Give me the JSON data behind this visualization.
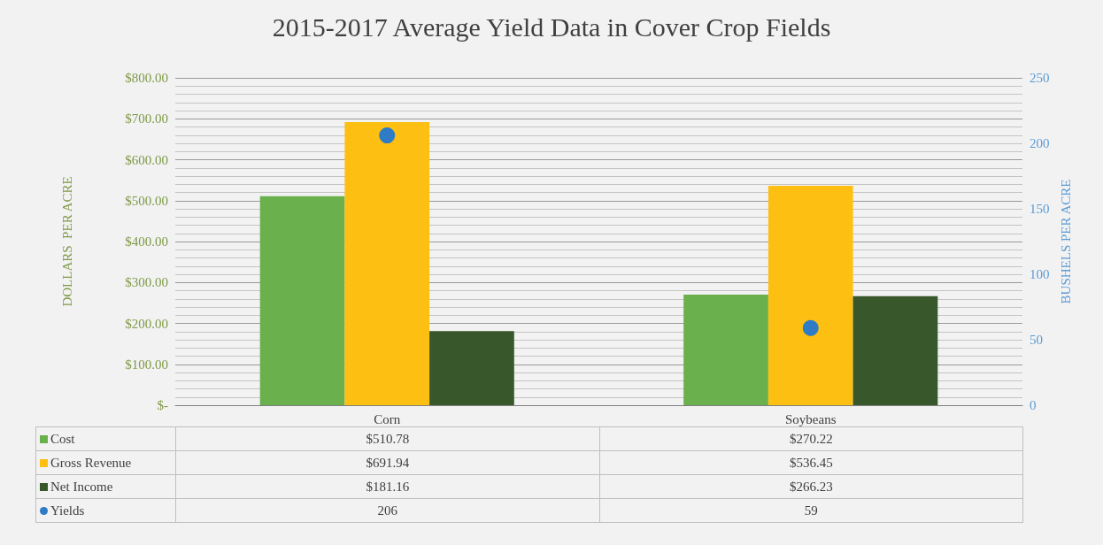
{
  "chart_data": {
    "type": "bar",
    "title": "2015-2017 Average Yield Data in Cover Crop Fields",
    "ylabel": "DOLLARS  PER ACRE",
    "y2label": "BUSHELS PER ACRE",
    "categories": [
      "Corn",
      "Soybeans"
    ],
    "series": [
      {
        "name": "Cost",
        "color": "#6ab04c",
        "values": [
          510.78,
          270.22
        ],
        "value_labels": [
          "$510.78",
          "$270.22"
        ]
      },
      {
        "name": "Gross Revenue",
        "color": "#fdbf12",
        "values": [
          691.94,
          536.45
        ],
        "value_labels": [
          "$691.94",
          "$536.45"
        ]
      },
      {
        "name": "Net Income",
        "color": "#38572a",
        "values": [
          181.16,
          266.23
        ],
        "value_labels": [
          "$181.16",
          "$266.23"
        ]
      },
      {
        "name": "Yields",
        "type": "scatter",
        "axis": "y2",
        "color": "#2e7bc6",
        "values": [
          206,
          59
        ],
        "value_labels": [
          "206",
          "59"
        ]
      }
    ],
    "ylim": [
      0,
      800
    ],
    "yticks": [
      {
        "value": 0,
        "label": "$-"
      },
      {
        "value": 100,
        "label": "$100.00"
      },
      {
        "value": 200,
        "label": "$200.00"
      },
      {
        "value": 300,
        "label": "$300.00"
      },
      {
        "value": 400,
        "label": "$400.00"
      },
      {
        "value": 500,
        "label": "$500.00"
      },
      {
        "value": 600,
        "label": "$600.00"
      },
      {
        "value": 700,
        "label": "$700.00"
      },
      {
        "value": 800,
        "label": "$800.00"
      }
    ],
    "y2lim": [
      0,
      250
    ],
    "y2ticks": [
      0,
      50,
      100,
      150,
      200,
      250
    ],
    "grid": true,
    "legend": "bottom left",
    "marker": "circle"
  }
}
